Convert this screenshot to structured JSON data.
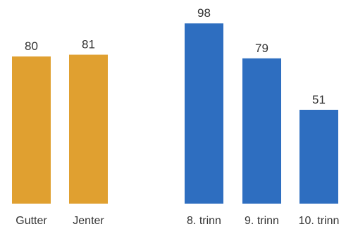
{
  "chart_data": {
    "type": "bar",
    "title": "",
    "xlabel": "",
    "ylabel": "",
    "ylim": [
      0,
      100
    ],
    "grid": false,
    "legend": "none",
    "categories": [
      "Gutter",
      "Jenter",
      "8. trinn",
      "9. trinn",
      "10. trinn"
    ],
    "values": [
      80,
      81,
      98,
      79,
      51
    ],
    "groups": [
      {
        "categories": [
          "Gutter",
          "Jenter"
        ],
        "color": "#E0A030"
      },
      {
        "categories": [
          "8. trinn",
          "9. trinn",
          "10. trinn"
        ],
        "color": "#2E6EC0"
      }
    ]
  }
}
